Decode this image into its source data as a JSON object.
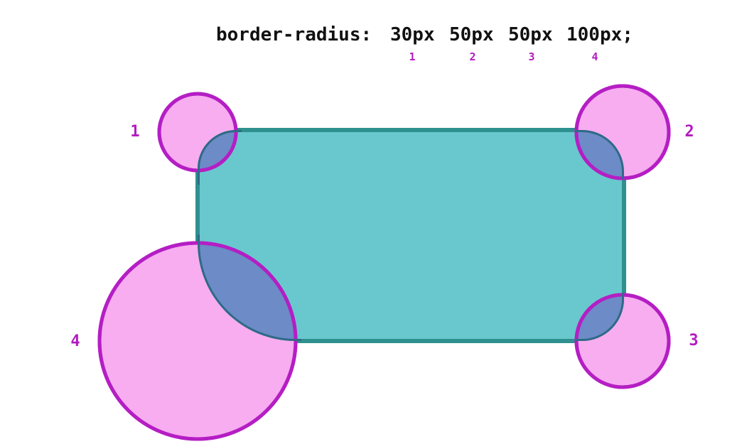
{
  "code": {
    "property": "border-radius:",
    "values": [
      "30px",
      "50px",
      "50px",
      "100px;"
    ],
    "indices": [
      "1",
      "2",
      "3",
      "4"
    ]
  },
  "corners": [
    {
      "label": "1",
      "name": "top-left",
      "radius": "30px"
    },
    {
      "label": "2",
      "name": "top-right",
      "radius": "50px"
    },
    {
      "label": "3",
      "name": "bottom-right",
      "radius": "50px"
    },
    {
      "label": "4",
      "name": "bottom-left",
      "radius": "100px"
    }
  ],
  "colors": {
    "box_fill": "#69c8cd",
    "box_stroke": "#2e918f",
    "circle_fill": "#f7adf0",
    "circle_stroke": "#b51ec4",
    "overlap_fill": "#6c8bc7",
    "overlap_stroke": "#2f6a86",
    "label_color": "#b21cc0",
    "code_color": "#111111"
  }
}
